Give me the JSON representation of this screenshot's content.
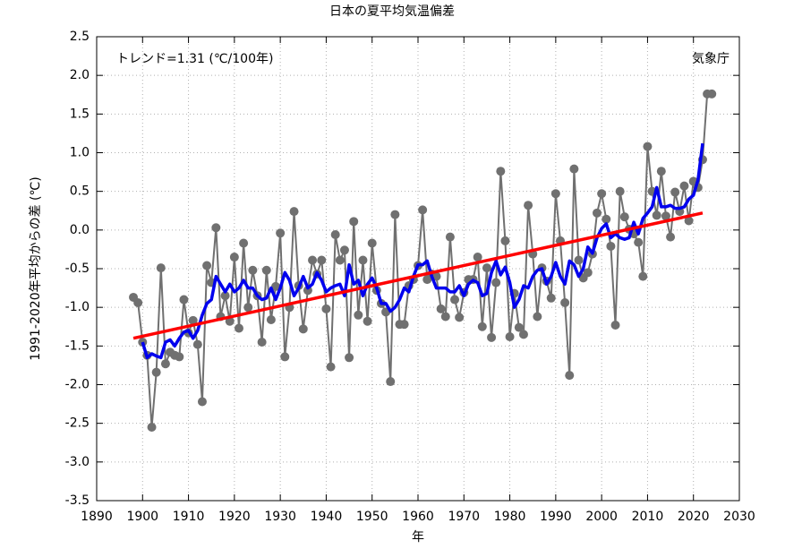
{
  "chart_data": {
    "type": "line",
    "title": "日本の夏平均気温偏差",
    "xlabel": "年",
    "ylabel": "1991-2020年平均からの差 (℃)",
    "annotation": "トレンド=1.31 (℃/100年)",
    "source": "気象庁",
    "xlim": [
      1890,
      2030
    ],
    "xticks": [
      1890,
      1900,
      1910,
      1920,
      1930,
      1940,
      1950,
      1960,
      1970,
      1980,
      1990,
      2000,
      2010,
      2020,
      2030
    ],
    "ylim": [
      -3.5,
      2.5
    ],
    "yticks": [
      {
        "value": -3.5,
        "label": "-3.5"
      },
      {
        "value": -3.0,
        "label": "-3.0"
      },
      {
        "value": -2.5,
        "label": "-2.5"
      },
      {
        "value": -2.0,
        "label": "-2.0"
      },
      {
        "value": -1.5,
        "label": "-1.5"
      },
      {
        "value": -1.0,
        "label": "-1.0"
      },
      {
        "value": -0.5,
        "label": "-0.5"
      },
      {
        "value": 0,
        "label": "0.0"
      },
      {
        "value": 0.5,
        "label": "0.5"
      },
      {
        "value": 1.0,
        "label": "1.0"
      },
      {
        "value": 1.5,
        "label": "1.5"
      },
      {
        "value": 2.0,
        "label": "2.0"
      },
      {
        "value": 2.5,
        "label": "2.5"
      }
    ],
    "grid": true,
    "x": [
      1898,
      1899,
      1900,
      1901,
      1902,
      1903,
      1904,
      1905,
      1906,
      1907,
      1908,
      1909,
      1910,
      1911,
      1912,
      1913,
      1914,
      1915,
      1916,
      1917,
      1918,
      1919,
      1920,
      1921,
      1922,
      1923,
      1924,
      1925,
      1926,
      1927,
      1928,
      1929,
      1930,
      1931,
      1932,
      1933,
      1934,
      1935,
      1936,
      1937,
      1938,
      1939,
      1940,
      1941,
      1942,
      1943,
      1944,
      1945,
      1946,
      1947,
      1948,
      1949,
      1950,
      1951,
      1952,
      1953,
      1954,
      1955,
      1956,
      1957,
      1958,
      1959,
      1960,
      1961,
      1962,
      1963,
      1964,
      1965,
      1966,
      1967,
      1968,
      1969,
      1970,
      1971,
      1972,
      1973,
      1974,
      1975,
      1976,
      1977,
      1978,
      1979,
      1980,
      1981,
      1982,
      1983,
      1984,
      1985,
      1986,
      1987,
      1988,
      1989,
      1990,
      1991,
      1992,
      1993,
      1994,
      1995,
      1996,
      1997,
      1998,
      1999,
      2000,
      2001,
      2002,
      2003,
      2004,
      2005,
      2006,
      2007,
      2008,
      2009,
      2010,
      2011,
      2012,
      2013,
      2014,
      2015,
      2016,
      2017,
      2018,
      2019,
      2020,
      2021,
      2022,
      2023,
      2024
    ],
    "series": [
      {
        "color": "#707070",
        "markers": true,
        "values": [
          -0.87,
          -0.94,
          -1.45,
          -1.62,
          -2.55,
          -1.84,
          -0.49,
          -1.73,
          -1.58,
          -1.62,
          -1.64,
          -0.9,
          -1.33,
          -1.17,
          -1.48,
          -2.22,
          -0.46,
          -0.68,
          0.03,
          -1.12,
          -0.85,
          -1.18,
          -0.35,
          -1.27,
          -0.17,
          -1.0,
          -0.52,
          -0.85,
          -1.45,
          -0.52,
          -1.16,
          -0.73,
          -0.04,
          -1.64,
          -1.0,
          0.24,
          -0.72,
          -1.28,
          -0.78,
          -0.39,
          -0.57,
          -0.39,
          -1.02,
          -1.77,
          -0.06,
          -0.39,
          -0.26,
          -1.65,
          0.11,
          -1.1,
          -0.39,
          -1.18,
          -0.17,
          -0.78,
          -0.95,
          -1.06,
          -1.96,
          0.2,
          -1.22,
          -1.22,
          -0.72,
          -0.64,
          -0.46,
          0.26,
          -0.64,
          -0.57,
          -0.6,
          -1.02,
          -1.12,
          -0.09,
          -0.9,
          -1.13,
          -0.81,
          -0.64,
          -0.64,
          -0.35,
          -1.25,
          -0.49,
          -1.39,
          -0.68,
          0.76,
          -0.14,
          -1.38,
          -0.82,
          -1.26,
          -1.35,
          0.32,
          -0.31,
          -1.12,
          -0.49,
          -0.66,
          -0.88,
          0.47,
          -0.14,
          -0.94,
          -1.88,
          0.79,
          -0.39,
          -0.62,
          -0.55,
          -0.31,
          0.22,
          0.47,
          0.14,
          -0.21,
          -1.23,
          0.5,
          0.17,
          0.01,
          -0.05,
          -0.16,
          -0.6,
          1.08,
          0.5,
          0.19,
          0.76,
          0.18,
          -0.09,
          0.49,
          0.24,
          0.57,
          0.12,
          0.63,
          0.55,
          0.91,
          1.76,
          1.76
        ]
      },
      {
        "color": "#0000ee",
        "markers": false,
        "values": [
          null,
          null,
          -1.45,
          -1.65,
          -1.6,
          -1.63,
          -1.65,
          -1.45,
          -1.42,
          -1.5,
          -1.4,
          -1.32,
          -1.3,
          -1.4,
          -1.3,
          -1.1,
          -0.95,
          -0.9,
          -0.6,
          -0.7,
          -0.8,
          -0.7,
          -0.8,
          -0.75,
          -0.65,
          -0.75,
          -0.75,
          -0.85,
          -0.9,
          -0.88,
          -0.75,
          -0.9,
          -0.75,
          -0.55,
          -0.65,
          -0.85,
          -0.75,
          -0.6,
          -0.75,
          -0.7,
          -0.55,
          -0.65,
          -0.8,
          -0.75,
          -0.72,
          -0.7,
          -0.85,
          -0.45,
          -0.7,
          -0.65,
          -0.85,
          -0.7,
          -0.62,
          -0.75,
          -0.95,
          -0.95,
          -1.05,
          -1.0,
          -0.9,
          -0.75,
          -0.8,
          -0.6,
          -0.45,
          -0.45,
          -0.4,
          -0.6,
          -0.75,
          -0.75,
          -0.75,
          -0.8,
          -0.8,
          -0.72,
          -0.85,
          -0.7,
          -0.65,
          -0.68,
          -0.85,
          -0.82,
          -0.55,
          -0.4,
          -0.58,
          -0.48,
          -0.68,
          -1.0,
          -0.9,
          -0.72,
          -0.75,
          -0.6,
          -0.52,
          -0.5,
          -0.7,
          -0.6,
          -0.42,
          -0.6,
          -0.7,
          -0.4,
          -0.45,
          -0.6,
          -0.5,
          -0.22,
          -0.3,
          -0.1,
          0.02,
          0.08,
          -0.1,
          -0.05,
          -0.1,
          -0.12,
          -0.1,
          0.1,
          -0.05,
          0.15,
          0.22,
          0.3,
          0.55,
          0.3,
          0.3,
          0.32,
          0.28,
          0.28,
          0.3,
          0.4,
          0.45,
          0.65,
          1.12,
          null,
          null
        ]
      },
      {
        "color": "#ff0000",
        "markers": false,
        "x": [
          1898,
          2022
        ],
        "values": [
          -1.4,
          0.22
        ]
      }
    ]
  }
}
